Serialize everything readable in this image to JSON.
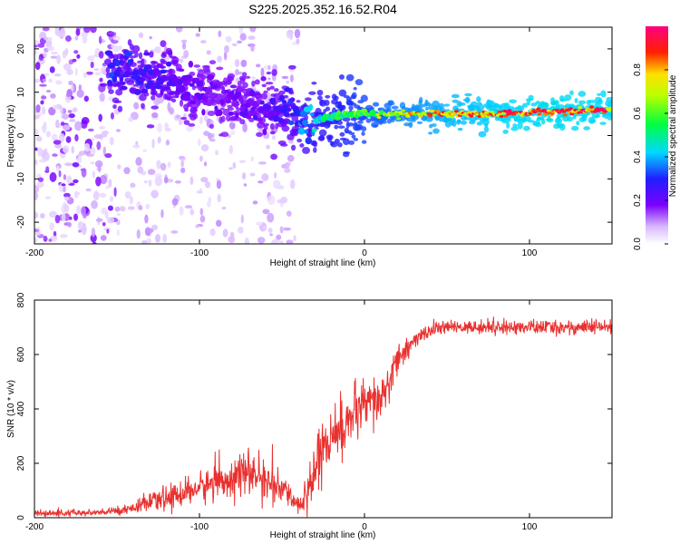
{
  "title": "S225.2025.352.16.52.R04",
  "colors": {
    "snr_line": "#e8312f",
    "axis": "#000000",
    "background": "#ffffff",
    "colormap": [
      "#ffffff",
      "#d0b0ff",
      "#7a00ff",
      "#2020ff",
      "#00e0ff",
      "#00ff40",
      "#c0ff00",
      "#ffd000",
      "#ff2000",
      "#ff0080"
    ]
  },
  "chart_data": [
    {
      "type": "heatmap",
      "name": "spectrogram",
      "xlabel": "Height of straight line (km)",
      "ylabel": "Frequency (Hz)",
      "xlim": [
        -200,
        150
      ],
      "ylim": [
        -25,
        25
      ],
      "xticks": [
        -200,
        -100,
        0,
        100
      ],
      "yticks": [
        -20,
        -10,
        0,
        10,
        20
      ],
      "grid": false,
      "colorbar": {
        "label": "Normalized spectral amplitude",
        "range": [
          0.0,
          1.0
        ],
        "ticks": [
          "0.0",
          "0.2",
          "0.4",
          "0.6",
          "0.8"
        ]
      },
      "ridge": {
        "x": [
          -155,
          -140,
          -120,
          -100,
          -80,
          -60,
          -45,
          -35,
          -25,
          -10,
          0,
          20,
          50,
          80,
          110,
          150
        ],
        "frequency": [
          14,
          14.5,
          13,
          10,
          8,
          6,
          5,
          3,
          4,
          5,
          5,
          5,
          5,
          5,
          5.5,
          6
        ],
        "amplitude": [
          0.3,
          0.3,
          0.25,
          0.2,
          0.2,
          0.22,
          0.3,
          0.4,
          0.5,
          0.6,
          0.65,
          0.75,
          0.85,
          0.9,
          0.95,
          0.92
        ]
      },
      "noise_x_range": [
        -200,
        -40
      ],
      "strong_noise_x_range": [
        -200,
        -150
      ]
    },
    {
      "type": "line",
      "name": "snr",
      "xlabel": "Height of straight line (km)",
      "ylabel": "SNR (10 * v/v)",
      "xlim": [
        -200,
        150
      ],
      "ylim": [
        0,
        800
      ],
      "xticks": [
        -200,
        -100,
        0,
        100
      ],
      "yticks": [
        0,
        200,
        400,
        600,
        800
      ],
      "grid": false,
      "envelope": {
        "x": [
          -200,
          -160,
          -145,
          -120,
          -100,
          -80,
          -70,
          -55,
          -45,
          -38,
          -33,
          -28,
          -20,
          -15,
          -10,
          -5,
          0,
          5,
          10,
          15,
          20,
          30,
          40,
          50,
          100,
          150
        ],
        "mean": [
          15,
          18,
          30,
          70,
          110,
          150,
          165,
          120,
          80,
          40,
          120,
          250,
          280,
          320,
          360,
          380,
          400,
          420,
          430,
          500,
          580,
          650,
          690,
          700,
          700,
          700
        ],
        "spread": [
          12,
          12,
          15,
          40,
          50,
          70,
          70,
          60,
          40,
          20,
          120,
          150,
          120,
          100,
          90,
          90,
          100,
          90,
          80,
          70,
          50,
          30,
          25,
          20,
          25,
          25
        ]
      }
    }
  ]
}
